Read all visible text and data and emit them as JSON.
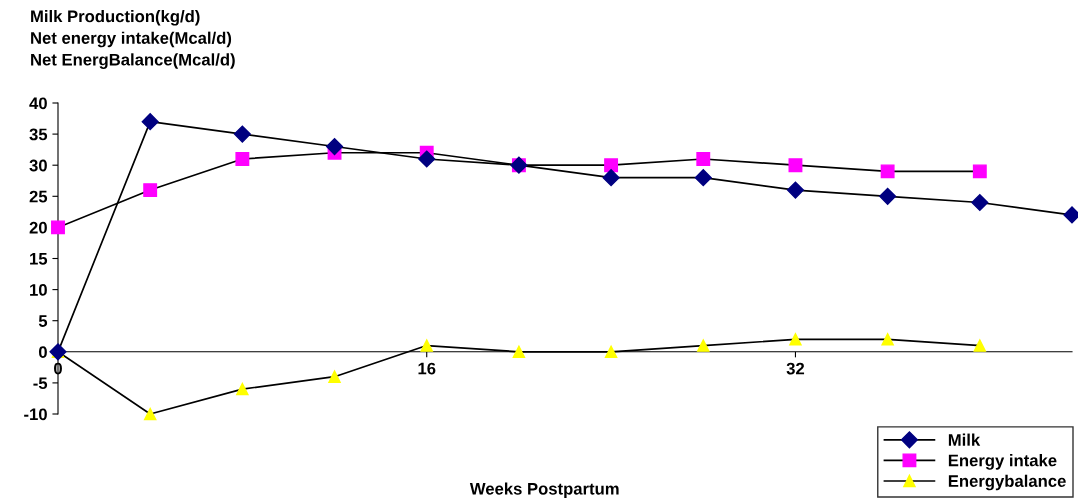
{
  "chart_data": {
    "type": "line",
    "ylabel": "Milk Production(kg/d)\nNet energy intake(Mcal/d)\nNet EnergBalance(Mcal/d)",
    "xlabel": "Weeks Postpartum",
    "x": [
      0,
      4,
      8,
      12,
      16,
      20,
      24,
      28,
      32,
      36,
      40,
      44
    ],
    "series": [
      {
        "name": "Milk",
        "color": "#000080",
        "marker": "diamond",
        "values": [
          0,
          37,
          35,
          33,
          31,
          30,
          28,
          28,
          26,
          25,
          24,
          22
        ]
      },
      {
        "name": "Energy intake",
        "color": "#ff00ff",
        "marker": "square",
        "values": [
          20,
          26,
          31,
          32,
          32,
          30,
          30,
          31,
          30,
          29,
          29,
          null
        ]
      },
      {
        "name": "Energybalance",
        "color": "#ffff00",
        "marker": "triangle",
        "values": [
          0,
          -10,
          -6,
          -4,
          1,
          0,
          0,
          1,
          2,
          2,
          1,
          null
        ]
      }
    ],
    "xlim": [
      0,
      44
    ],
    "xticks": [
      0,
      16,
      32
    ],
    "ylim": [
      -10,
      40
    ],
    "yticks": [
      -10,
      -5,
      0,
      5,
      10,
      15,
      20,
      25,
      30,
      35,
      40
    ],
    "grid": false,
    "legend": "bottom right",
    "line_style": "solid"
  }
}
